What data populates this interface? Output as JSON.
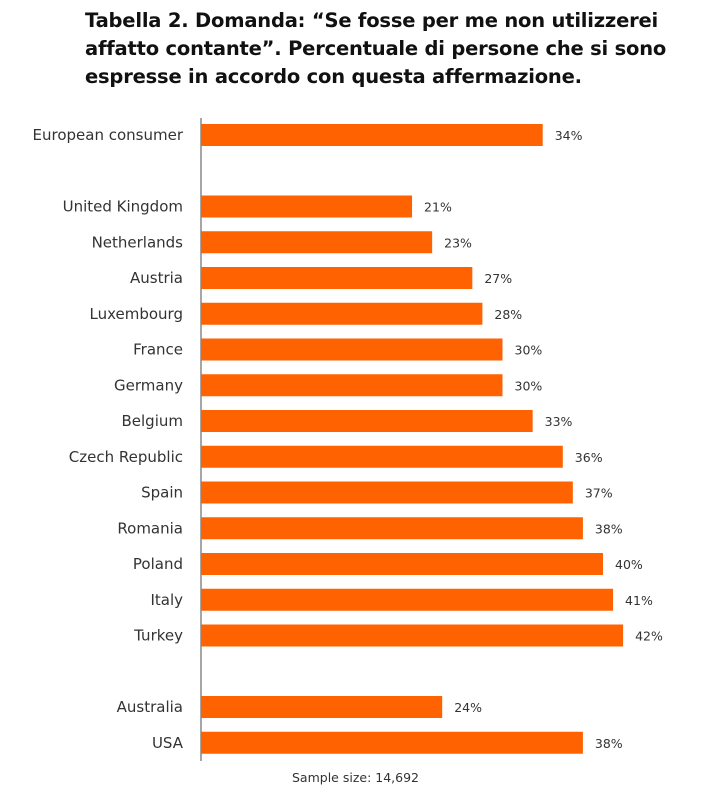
{
  "chart_data": {
    "type": "bar",
    "orientation": "horizontal",
    "title": "Tabella 2. Domanda: “Se fosse per me non utilizzerei affatto contante”. Percentuale di persone che si sono espresse in accordo con questa affermazione.",
    "categories": [
      "European consumer",
      "United Kingdom",
      "Netherlands",
      "Austria",
      "Luxembourg",
      "France",
      "Germany",
      "Belgium",
      "Czech Republic",
      "Spain",
      "Romania",
      "Poland",
      "Italy",
      "Turkey",
      "Australia",
      "USA"
    ],
    "values": [
      34,
      21,
      23,
      27,
      28,
      30,
      30,
      33,
      36,
      37,
      38,
      40,
      41,
      42,
      24,
      38
    ],
    "value_labels": [
      "34%",
      "21%",
      "23%",
      "27%",
      "28%",
      "30%",
      "30%",
      "33%",
      "36%",
      "37%",
      "38%",
      "40%",
      "41%",
      "42%",
      "24%",
      "38%"
    ],
    "groups": [
      [
        "European consumer"
      ],
      [
        "United Kingdom",
        "Netherlands",
        "Austria",
        "Luxembourg",
        "France",
        "Germany",
        "Belgium",
        "Czech Republic",
        "Spain",
        "Romania",
        "Poland",
        "Italy",
        "Turkey"
      ],
      [
        "Australia",
        "USA"
      ]
    ],
    "unit": "%",
    "xlim": [
      0,
      50
    ],
    "grid": false,
    "legend": "none",
    "bar_color": "#ff6200",
    "footnote": "Sample size: 14,692"
  }
}
